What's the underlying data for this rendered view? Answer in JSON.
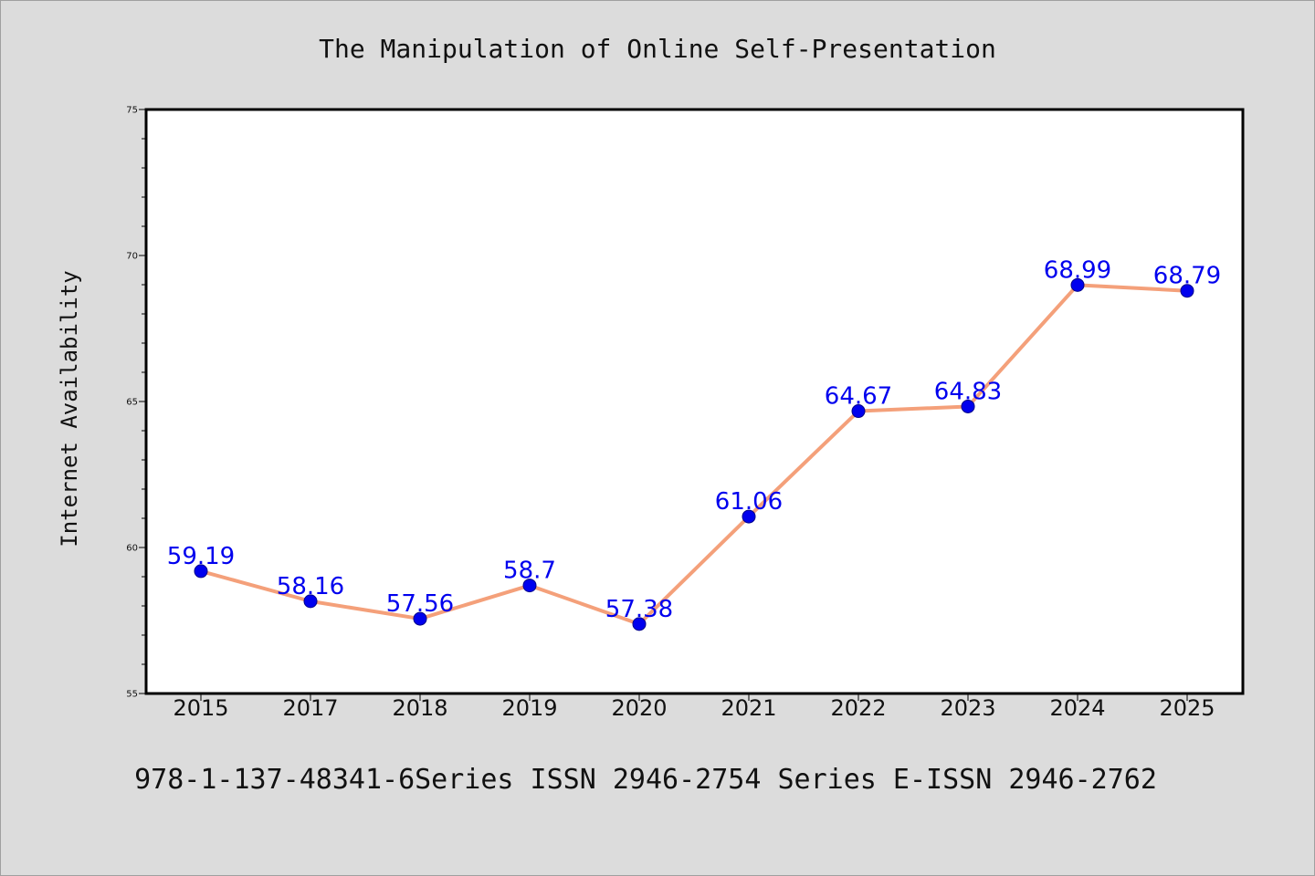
{
  "chart_data": {
    "type": "line",
    "title": "The Manipulation of Online Self-Presentation",
    "xlabel": "",
    "ylabel": "Internet Availability",
    "categories": [
      "2015",
      "2017",
      "2018",
      "2019",
      "2020",
      "2021",
      "2022",
      "2023",
      "2024",
      "2025"
    ],
    "series": [
      {
        "values": [
          59.19,
          58.16,
          57.56,
          58.7,
          57.38,
          61.06,
          64.67,
          64.83,
          68.99,
          68.79
        ],
        "labels": [
          "59.19",
          "58.16",
          "57.56",
          "58.7",
          "57.38",
          "61.06",
          "64.67",
          "64.83",
          "68.99",
          "68.79"
        ]
      }
    ],
    "ylim": [
      55,
      75
    ],
    "yticks": [
      "55",
      "60",
      "65",
      "70",
      "75"
    ],
    "grid": false,
    "legend": "none",
    "colors": {
      "line": "#f4a07a",
      "marker": "#0000ee",
      "marker_edge": "#00008b",
      "data_label": "#0000ee",
      "background": "#dcdcdc",
      "plot_background": "#ffffff"
    }
  },
  "footer": {
    "text": "978-1-137-48341-6Series ISSN 2946-2754 Series E-ISSN 2946-2762"
  }
}
